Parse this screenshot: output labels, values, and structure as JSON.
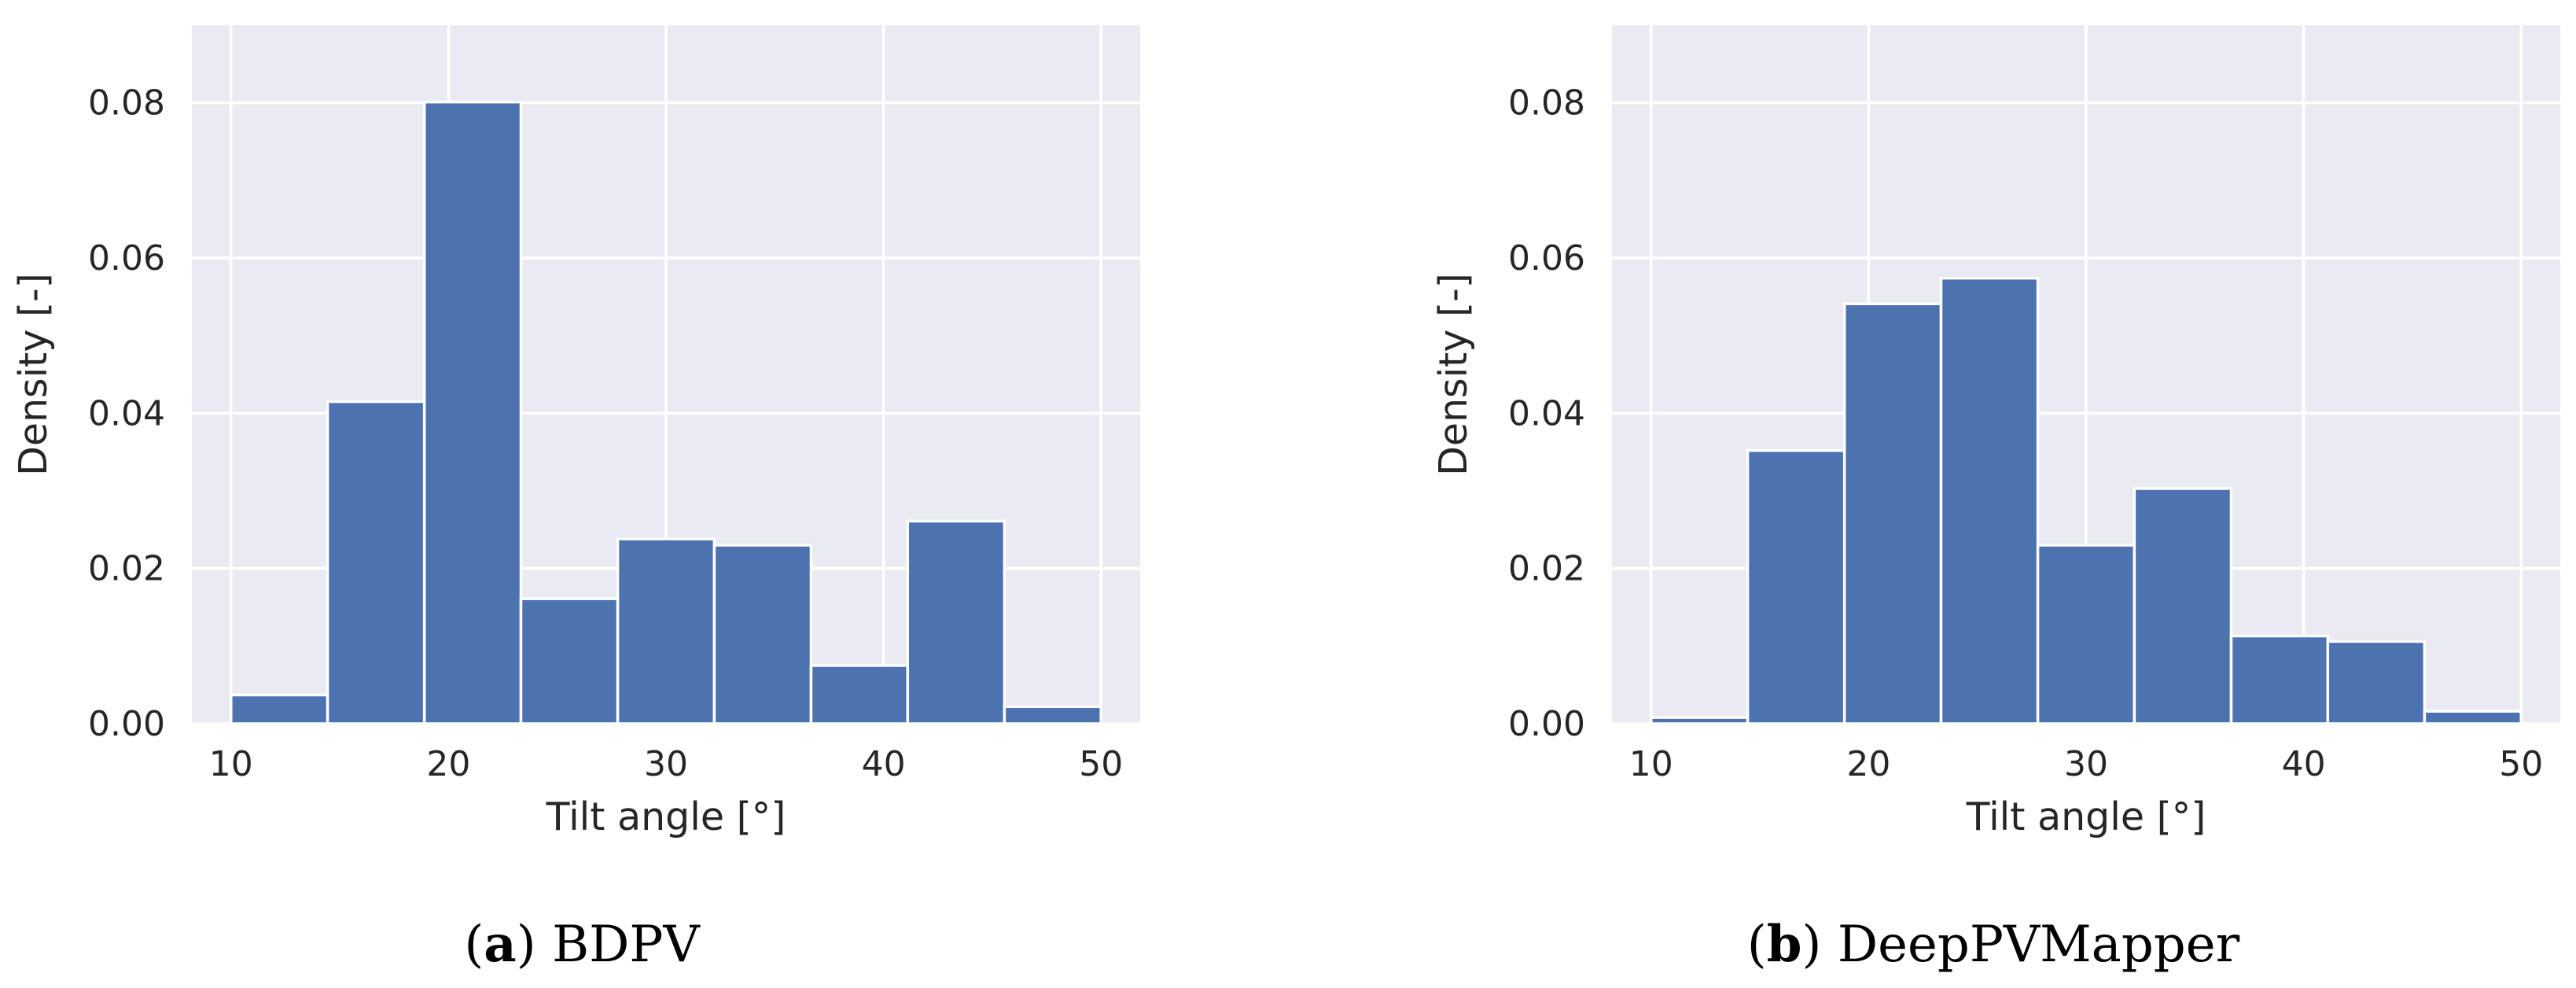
{
  "chart_data": [
    {
      "type": "bar",
      "subtype": "histogram",
      "caption_letter": "a",
      "caption_text": "BDPV",
      "xlabel": "Tilt angle [°]",
      "ylabel": "Density [-]",
      "xlim": [
        8.2,
        51.8
      ],
      "ylim": [
        0,
        0.09
      ],
      "xticks": [
        "10",
        "20",
        "30",
        "40",
        "50"
      ],
      "xtick_values": [
        10,
        20,
        30,
        40,
        50
      ],
      "yticks": [
        "0.00",
        "0.02",
        "0.04",
        "0.06",
        "0.08"
      ],
      "ytick_values": [
        0,
        0.02,
        0.04,
        0.06,
        0.08
      ],
      "grid": true,
      "bin_edges": [
        10,
        14.44,
        18.89,
        23.33,
        27.78,
        32.22,
        36.67,
        41.11,
        45.56,
        50
      ],
      "values": [
        0.0037,
        0.0415,
        0.0801,
        0.0161,
        0.0238,
        0.023,
        0.0075,
        0.0261,
        0.0022
      ]
    },
    {
      "type": "bar",
      "subtype": "histogram",
      "caption_letter": "b",
      "caption_text": "DeepPVMapper",
      "xlabel": "Tilt angle [°]",
      "ylabel": "Density [-]",
      "xlim": [
        8.2,
        51.8
      ],
      "ylim": [
        0,
        0.09
      ],
      "xticks": [
        "10",
        "20",
        "30",
        "40",
        "50"
      ],
      "xtick_values": [
        10,
        20,
        30,
        40,
        50
      ],
      "yticks": [
        "0.00",
        "0.02",
        "0.04",
        "0.06",
        "0.08"
      ],
      "ytick_values": [
        0,
        0.02,
        0.04,
        0.06,
        0.08
      ],
      "grid": true,
      "bin_edges": [
        10,
        14.44,
        18.89,
        23.33,
        27.78,
        32.22,
        36.67,
        41.11,
        45.56,
        50
      ],
      "values": [
        0.0008,
        0.0352,
        0.0541,
        0.0574,
        0.023,
        0.0303,
        0.0113,
        0.0106,
        0.0016
      ]
    }
  ],
  "colors": {
    "bar": "#4c72b0",
    "plot_background": "#eaeaf2",
    "grid": "#ffffff",
    "text": "#262626"
  }
}
